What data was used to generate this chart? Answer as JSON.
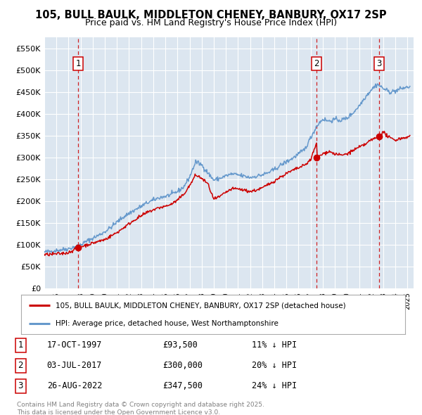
{
  "title_line1": "105, BULL BAULK, MIDDLETON CHENEY, BANBURY, OX17 2SP",
  "title_line2": "Price paid vs. HM Land Registry's House Price Index (HPI)",
  "bg_color": "#dce6f0",
  "red_color": "#cc0000",
  "blue_color": "#6699cc",
  "marker_color": "#cc0000",
  "vline_color": "#cc0000",
  "sale_prices": [
    93500,
    300000,
    347500
  ],
  "sale_labels": [
    "1",
    "2",
    "3"
  ],
  "sale_date_floats": [
    1997.79,
    2017.5,
    2022.65
  ],
  "sale_annotations": [
    [
      "1",
      "17-OCT-1997",
      "£93,500",
      "11% ↓ HPI"
    ],
    [
      "2",
      "03-JUL-2017",
      "£300,000",
      "20% ↓ HPI"
    ],
    [
      "3",
      "26-AUG-2022",
      "£347,500",
      "24% ↓ HPI"
    ]
  ],
  "legend_entries": [
    "105, BULL BAULK, MIDDLETON CHENEY, BANBURY, OX17 2SP (detached house)",
    "HPI: Average price, detached house, West Northamptonshire"
  ],
  "footer_text": "Contains HM Land Registry data © Crown copyright and database right 2025.\nThis data is licensed under the Open Government Licence v3.0.",
  "ylim": [
    0,
    575000
  ],
  "yticks": [
    0,
    50000,
    100000,
    150000,
    200000,
    250000,
    300000,
    350000,
    400000,
    450000,
    500000,
    550000
  ],
  "ytick_labels": [
    "£0",
    "£50K",
    "£100K",
    "£150K",
    "£200K",
    "£250K",
    "£300K",
    "£350K",
    "£400K",
    "£450K",
    "£500K",
    "£550K"
  ],
  "xlim_start": 1995.0,
  "xlim_end": 2025.5,
  "hpi_anchors_t": [
    1995.0,
    1995.5,
    1996.0,
    1996.5,
    1997.0,
    1997.5,
    1998.0,
    1998.5,
    1999.0,
    1999.5,
    2000.0,
    2000.5,
    2001.0,
    2001.5,
    2002.0,
    2002.5,
    2003.0,
    2003.5,
    2004.0,
    2004.5,
    2005.0,
    2005.5,
    2006.0,
    2006.5,
    2007.0,
    2007.5,
    2008.0,
    2008.5,
    2009.0,
    2009.5,
    2010.0,
    2010.5,
    2011.0,
    2011.5,
    2012.0,
    2012.5,
    2013.0,
    2013.5,
    2014.0,
    2014.5,
    2015.0,
    2015.5,
    2016.0,
    2016.5,
    2017.0,
    2017.5,
    2018.0,
    2018.5,
    2019.0,
    2019.5,
    2020.0,
    2020.5,
    2021.0,
    2021.5,
    2022.0,
    2022.5,
    2023.0,
    2023.5,
    2024.0,
    2024.5,
    2025.2
  ],
  "hpi_anchors_v": [
    83000,
    85000,
    87000,
    89000,
    91000,
    95000,
    100000,
    108000,
    115000,
    122000,
    130000,
    140000,
    152000,
    163000,
    172000,
    180000,
    188000,
    196000,
    202000,
    208000,
    211000,
    215000,
    222000,
    232000,
    255000,
    290000,
    283000,
    265000,
    248000,
    252000,
    258000,
    262000,
    260000,
    257000,
    254000,
    257000,
    260000,
    265000,
    272000,
    282000,
    290000,
    298000,
    308000,
    318000,
    345000,
    372000,
    388000,
    383000,
    387000,
    385000,
    390000,
    402000,
    418000,
    438000,
    455000,
    468000,
    458000,
    450000,
    452000,
    458000,
    462000
  ],
  "prop_anchors_t": [
    1995.0,
    1995.5,
    1996.0,
    1996.5,
    1997.0,
    1997.79,
    1998.2,
    1998.8,
    1999.5,
    2000.0,
    2000.5,
    2001.0,
    2001.5,
    2002.0,
    2002.5,
    2003.0,
    2003.5,
    2004.0,
    2004.5,
    2005.0,
    2005.5,
    2006.0,
    2006.5,
    2007.0,
    2007.5,
    2008.0,
    2008.5,
    2009.0,
    2009.5,
    2010.0,
    2010.5,
    2011.0,
    2011.5,
    2012.0,
    2012.5,
    2013.0,
    2013.5,
    2014.0,
    2014.5,
    2015.0,
    2015.5,
    2016.0,
    2016.5,
    2017.0,
    2017.5,
    2017.55,
    2018.0,
    2018.5,
    2019.0,
    2019.5,
    2020.0,
    2020.5,
    2021.0,
    2021.5,
    2022.0,
    2022.65,
    2022.8,
    2023.0,
    2023.5,
    2024.0,
    2024.5,
    2025.2
  ],
  "prop_anchors_v": [
    77000,
    78000,
    79000,
    80000,
    82000,
    93500,
    97000,
    102000,
    108000,
    112000,
    120000,
    128000,
    138000,
    148000,
    158000,
    166000,
    174000,
    180000,
    185000,
    188000,
    193000,
    202000,
    215000,
    235000,
    260000,
    252000,
    240000,
    204000,
    210000,
    220000,
    228000,
    228000,
    225000,
    222000,
    225000,
    230000,
    238000,
    246000,
    255000,
    263000,
    270000,
    276000,
    282000,
    295000,
    333000,
    300000,
    308000,
    314000,
    308000,
    305000,
    308000,
    316000,
    323000,
    330000,
    340000,
    347500,
    352000,
    358000,
    345000,
    340000,
    344000,
    348000
  ]
}
